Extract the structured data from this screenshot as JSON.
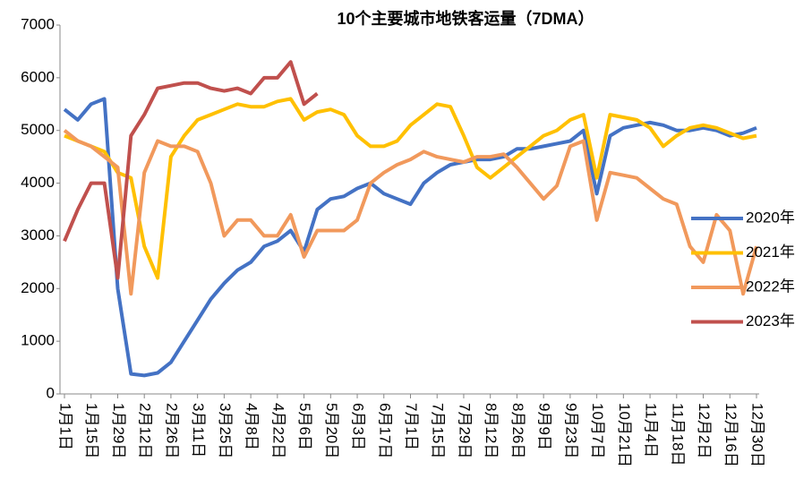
{
  "chart_data": {
    "type": "line",
    "title": "10个主要城市地铁客运量（7DMA）",
    "categories": [
      "1月1日",
      null,
      "1月15日",
      null,
      "1月29日",
      null,
      "2月12日",
      null,
      "2月26日",
      null,
      "3月11日",
      null,
      "3月25日",
      null,
      "4月8日",
      null,
      "4月22日",
      null,
      "5月6日",
      null,
      "5月20日",
      null,
      "6月3日",
      null,
      "6月17日",
      null,
      "7月1日",
      null,
      "7月15日",
      null,
      "7月29日",
      null,
      "8月12日",
      null,
      "8月26日",
      null,
      "9月9日",
      null,
      "9月23日",
      null,
      "10月7日",
      null,
      "10月21日",
      null,
      "11月4日",
      null,
      "11月18日",
      null,
      "12月2日",
      null,
      "12月16日",
      null,
      "12月30日"
    ],
    "ylim": [
      0,
      7000
    ],
    "yticks": [
      0,
      1000,
      2000,
      3000,
      4000,
      5000,
      6000,
      7000
    ],
    "series": [
      {
        "name": "2020年",
        "color": "#4472c4",
        "values": [
          5400,
          5200,
          5500,
          5600,
          2000,
          380,
          350,
          400,
          600,
          1000,
          1400,
          1800,
          2100,
          2350,
          2500,
          2800,
          2900,
          3100,
          2700,
          3500,
          3700,
          3750,
          3900,
          4000,
          3800,
          3700,
          3600,
          4000,
          4200,
          4350,
          4400,
          4450,
          4450,
          4500,
          4650,
          4650,
          4700,
          4750,
          4800,
          5000,
          3800,
          4900,
          5050,
          5100,
          5150,
          5100,
          5000,
          5000,
          5050,
          5000,
          4900,
          4950,
          5050
        ]
      },
      {
        "name": "2021年",
        "color": "#ffc000",
        "values": [
          4900,
          4800,
          4700,
          4600,
          4200,
          4100,
          2800,
          2200,
          4500,
          4900,
          5200,
          5300,
          5400,
          5500,
          5450,
          5450,
          5550,
          5600,
          5200,
          5350,
          5400,
          5300,
          4900,
          4700,
          4700,
          4800,
          5100,
          5300,
          5500,
          5450,
          4900,
          4300,
          4100,
          4300,
          4500,
          4700,
          4900,
          5000,
          5200,
          5300,
          4100,
          5300,
          5250,
          5200,
          5050,
          4700,
          4900,
          5050,
          5100,
          5050,
          4950,
          4850,
          4900
        ]
      },
      {
        "name": "2022年",
        "color": "#f1995c",
        "values": [
          5000,
          4800,
          4700,
          4500,
          4300,
          1900,
          4200,
          4800,
          4700,
          4700,
          4600,
          4000,
          3000,
          3300,
          3300,
          3000,
          3000,
          3400,
          2600,
          3100,
          3100,
          3100,
          3300,
          4000,
          4200,
          4350,
          4450,
          4600,
          4500,
          4450,
          4400,
          4500,
          4500,
          4550,
          4300,
          4000,
          3700,
          3950,
          4700,
          4800,
          3300,
          4200,
          4150,
          4100,
          3900,
          3700,
          3600,
          2800,
          2500,
          3400,
          3100,
          1900,
          2800
        ]
      },
      {
        "name": "2023年",
        "color": "#c0504d",
        "values": [
          2900,
          3500,
          4000,
          4000,
          2200,
          4900,
          5300,
          5800,
          5850,
          5900,
          5900,
          5800,
          5750,
          5800,
          5700,
          6000,
          6000,
          6300,
          5500,
          5700,
          null,
          null,
          null,
          null,
          null,
          null,
          null,
          null,
          null,
          null,
          null,
          null,
          null,
          null,
          null,
          null,
          null,
          null,
          null,
          null,
          null,
          null,
          null,
          null,
          null,
          null,
          null,
          null,
          null,
          null,
          null,
          null,
          null
        ]
      }
    ]
  }
}
